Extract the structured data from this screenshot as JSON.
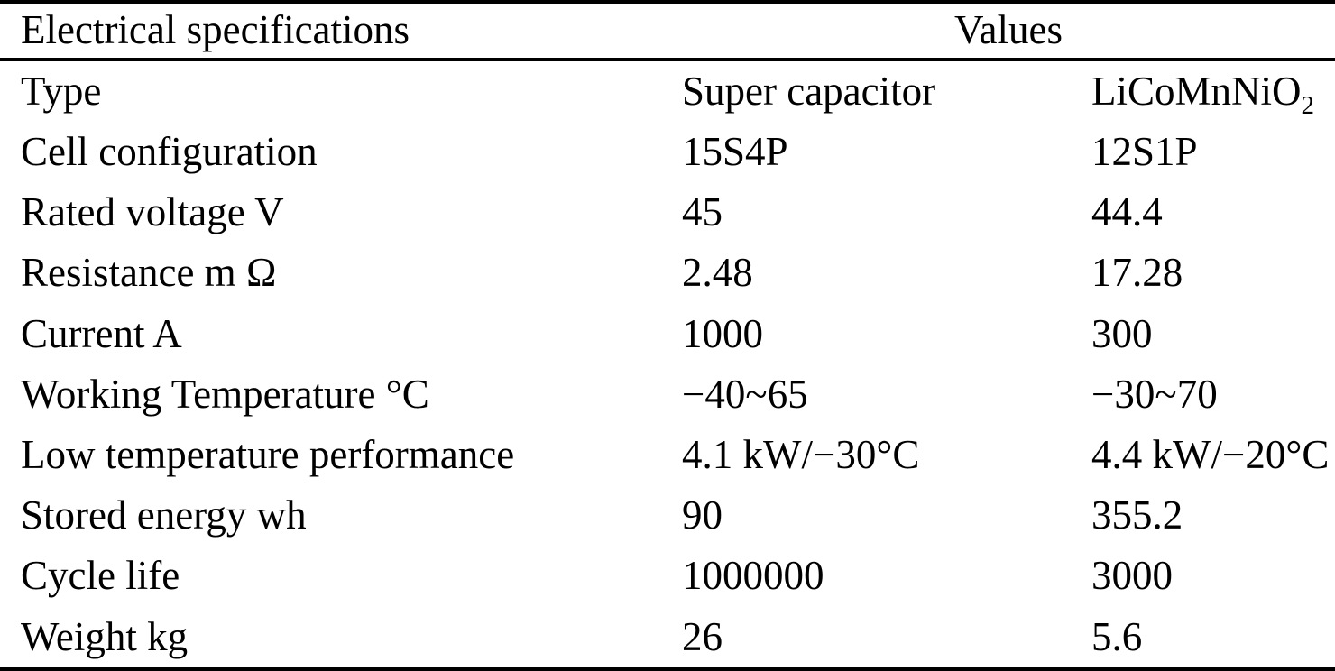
{
  "page": {
    "background_color": "#ffffff",
    "text_color": "#000000"
  },
  "table": {
    "header": {
      "specifications": "Electrical specifications",
      "values": "Values"
    },
    "rows": [
      {
        "label": "Type",
        "v1": "Super capacitor",
        "v2": "LiCoMnNiO",
        "v2_sub": "2"
      },
      {
        "label": "Cell configuration",
        "v1": "15S4P",
        "v2": "12S1P"
      },
      {
        "label": "Rated voltage V",
        "v1": "45",
        "v2": "44.4"
      },
      {
        "label": "Resistance m Ω",
        "v1": "2.48",
        "v2": "17.28"
      },
      {
        "label": "Current A",
        "v1": "1000",
        "v2": "300"
      },
      {
        "label": "Working Temperature °C",
        "v1": "−40~65",
        "v2": "−30~70"
      },
      {
        "label": "Low temperature performance",
        "v1": "4.1 kW/−30°C",
        "v2": "4.4 kW/−20°C"
      },
      {
        "label": "Stored energy wh",
        "v1": "90",
        "v2": "355.2"
      },
      {
        "label": "Cycle life",
        "v1": "1000000",
        "v2": "3000"
      },
      {
        "label": "Weight kg",
        "v1": "26",
        "v2": "5.6"
      }
    ]
  },
  "chart_data": {
    "type": "table",
    "title": "Electrical specifications",
    "columns": [
      "Electrical specifications",
      "Super capacitor",
      "LiCoMnNiO2"
    ],
    "rows": [
      [
        "Type",
        "Super capacitor",
        "LiCoMnNiO2"
      ],
      [
        "Cell configuration",
        "15S4P",
        "12S1P"
      ],
      [
        "Rated voltage V",
        "45",
        "44.4"
      ],
      [
        "Resistance m Ω",
        "2.48",
        "17.28"
      ],
      [
        "Current A",
        "1000",
        "300"
      ],
      [
        "Working Temperature °C",
        "−40~65",
        "−30~70"
      ],
      [
        "Low temperature performance",
        "4.1 kW/−30°C",
        "4.4 kW/−20°C"
      ],
      [
        "Stored energy wh",
        "90",
        "355.2"
      ],
      [
        "Cycle life",
        "1000000",
        "3000"
      ],
      [
        "Weight kg",
        "26",
        "5.6"
      ]
    ]
  }
}
